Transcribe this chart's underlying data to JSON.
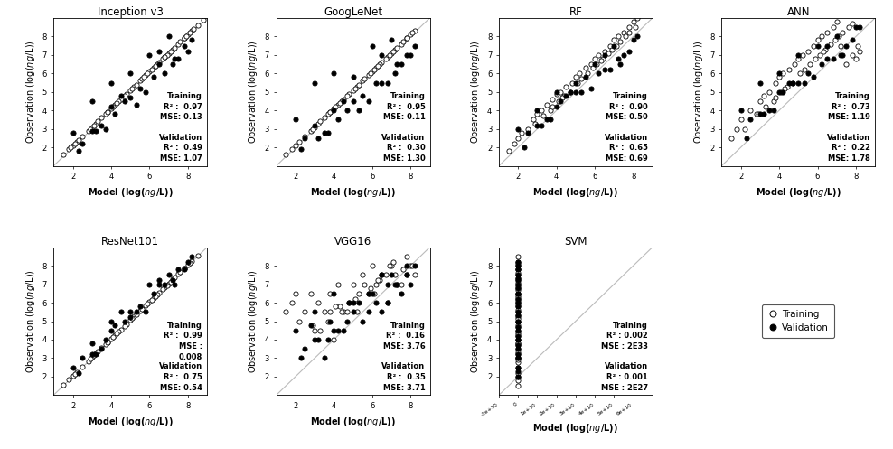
{
  "subplots": [
    {
      "title": "Inception v3",
      "train_r2": "0.97",
      "train_mse": "0.13",
      "val_r2": "0.49",
      "val_mse": "1.07",
      "xlim": [
        1,
        9
      ],
      "ylim": [
        1,
        9
      ],
      "xticks": [
        2,
        4,
        6,
        8
      ],
      "yticks": [
        2,
        3,
        4,
        5,
        6,
        7,
        8
      ],
      "svm": false,
      "train_x": [
        1.5,
        1.8,
        2.0,
        2.2,
        2.5,
        2.8,
        3.0,
        3.2,
        3.5,
        3.8,
        4.0,
        4.2,
        4.5,
        4.8,
        5.0,
        5.2,
        5.5,
        5.8,
        6.0,
        6.2,
        6.5,
        6.8,
        7.0,
        7.2,
        7.5,
        7.8,
        8.0,
        8.2,
        8.5,
        8.8,
        3.3,
        4.4,
        5.6,
        6.1,
        6.9,
        7.3,
        7.8,
        5.3,
        4.7,
        3.7,
        6.7,
        8.1,
        7.6,
        6.4,
        5.9,
        4.3,
        3.8,
        2.9,
        2.3,
        1.9,
        5.1,
        6.3,
        7.1,
        4.1,
        3.1,
        2.1,
        8.3,
        7.9,
        6.8,
        5.7
      ],
      "train_y": [
        1.6,
        1.9,
        2.1,
        2.3,
        2.6,
        2.9,
        3.1,
        3.3,
        3.6,
        3.9,
        4.1,
        4.3,
        4.6,
        4.9,
        5.1,
        5.3,
        5.6,
        5.9,
        6.1,
        6.3,
        6.6,
        6.9,
        7.1,
        7.3,
        7.6,
        7.9,
        8.1,
        8.3,
        8.6,
        8.9,
        3.4,
        4.5,
        5.7,
        6.2,
        7.0,
        7.4,
        7.9,
        5.4,
        4.8,
        3.8,
        6.8,
        8.2,
        7.7,
        6.5,
        6.0,
        4.4,
        3.9,
        3.0,
        2.4,
        2.0,
        5.2,
        6.4,
        7.2,
        4.2,
        3.2,
        2.2,
        8.4,
        8.0,
        6.9,
        5.8
      ],
      "val_x": [
        2.0,
        2.5,
        3.0,
        3.5,
        4.0,
        4.5,
        5.0,
        5.5,
        6.0,
        6.5,
        7.0,
        7.5,
        8.0,
        3.2,
        4.2,
        5.3,
        6.2,
        7.2,
        5.8,
        4.7,
        3.7,
        6.8,
        7.8,
        5.0,
        4.0,
        3.0,
        2.3,
        6.5,
        7.3,
        8.2
      ],
      "val_y": [
        2.8,
        2.2,
        4.5,
        3.2,
        5.5,
        4.8,
        6.0,
        5.2,
        7.0,
        6.5,
        8.0,
        6.8,
        7.2,
        2.9,
        3.8,
        4.3,
        5.8,
        6.5,
        5.0,
        4.5,
        3.0,
        6.0,
        7.5,
        4.7,
        4.2,
        2.9,
        1.8,
        7.2,
        6.8,
        7.8
      ]
    },
    {
      "title": "GoogLeNet",
      "train_r2": "0.95",
      "train_mse": "0.11",
      "val_r2": "0.30",
      "val_mse": "1.30",
      "xlim": [
        1,
        9
      ],
      "ylim": [
        1,
        9
      ],
      "xticks": [
        2,
        4,
        6,
        8
      ],
      "yticks": [
        2,
        3,
        4,
        5,
        6,
        7,
        8
      ],
      "svm": false,
      "train_x": [
        1.5,
        1.8,
        2.0,
        2.2,
        2.5,
        2.8,
        3.0,
        3.2,
        3.5,
        3.8,
        4.0,
        4.2,
        4.5,
        4.8,
        5.0,
        5.2,
        5.5,
        5.8,
        6.0,
        6.2,
        6.5,
        6.8,
        7.0,
        7.2,
        7.5,
        7.8,
        8.0,
        8.2,
        3.3,
        4.4,
        5.6,
        6.1,
        6.9,
        7.3,
        7.8,
        5.3,
        4.7,
        3.7,
        6.7,
        8.1,
        7.6,
        6.4,
        5.9,
        4.3,
        3.8,
        2.9,
        5.1,
        6.3,
        7.1,
        4.1
      ],
      "train_y": [
        1.6,
        1.9,
        2.1,
        2.3,
        2.6,
        2.9,
        3.1,
        3.3,
        3.6,
        3.9,
        4.1,
        4.3,
        4.6,
        4.9,
        5.1,
        5.3,
        5.6,
        5.9,
        6.1,
        6.3,
        6.6,
        6.9,
        7.1,
        7.3,
        7.6,
        7.9,
        8.1,
        8.3,
        3.4,
        4.5,
        5.7,
        6.2,
        7.0,
        7.4,
        7.9,
        5.4,
        4.8,
        3.8,
        6.8,
        8.2,
        7.7,
        6.5,
        6.0,
        4.4,
        3.9,
        3.0,
        5.2,
        6.4,
        7.2,
        4.2
      ],
      "val_x": [
        2.0,
        2.5,
        3.0,
        3.5,
        4.0,
        4.5,
        5.0,
        5.5,
        6.0,
        6.5,
        7.0,
        7.5,
        8.0,
        3.2,
        4.2,
        5.3,
        6.2,
        7.2,
        5.8,
        4.7,
        3.7,
        6.8,
        7.8,
        5.0,
        4.0,
        3.0,
        2.3,
        6.5,
        7.3,
        8.2
      ],
      "val_y": [
        3.5,
        2.5,
        5.5,
        2.8,
        6.0,
        4.5,
        5.8,
        4.8,
        7.5,
        5.5,
        7.8,
        6.5,
        7.0,
        2.5,
        3.5,
        4.0,
        5.5,
        6.0,
        4.5,
        4.0,
        2.8,
        5.5,
        7.0,
        4.5,
        4.0,
        3.2,
        1.9,
        7.0,
        6.5,
        7.5
      ]
    },
    {
      "title": "RF",
      "train_r2": "0.90",
      "train_mse": "0.50",
      "val_r2": "0.65",
      "val_mse": "0.69",
      "xlim": [
        1,
        9
      ],
      "ylim": [
        1,
        9
      ],
      "xticks": [
        2,
        4,
        6,
        8
      ],
      "yticks": [
        2,
        3,
        4,
        5,
        6,
        7,
        8
      ],
      "svm": false,
      "train_x": [
        1.5,
        1.8,
        2.0,
        2.2,
        2.5,
        2.8,
        3.0,
        3.2,
        3.5,
        3.8,
        4.0,
        4.2,
        4.5,
        4.8,
        5.0,
        5.2,
        5.5,
        5.8,
        6.0,
        6.2,
        6.5,
        6.8,
        7.0,
        7.2,
        7.5,
        7.8,
        8.0,
        8.2,
        3.3,
        4.4,
        5.6,
        6.1,
        6.9,
        7.3,
        7.8,
        5.3,
        4.7,
        3.7,
        6.7,
        8.1,
        7.6,
        6.4,
        5.9,
        4.3,
        3.8,
        2.9,
        5.1,
        6.3,
        7.1,
        4.1
      ],
      "train_y": [
        1.8,
        2.2,
        2.5,
        2.8,
        3.0,
        3.5,
        3.8,
        4.0,
        4.3,
        4.6,
        4.9,
        5.0,
        5.3,
        5.5,
        5.8,
        6.0,
        6.3,
        6.5,
        6.8,
        7.0,
        7.2,
        7.5,
        7.8,
        8.0,
        8.2,
        8.5,
        8.8,
        9.0,
        3.7,
        4.8,
        6.0,
        6.5,
        7.3,
        7.7,
        8.2,
        5.7,
        5.0,
        4.0,
        7.1,
        8.5,
        8.0,
        6.8,
        6.3,
        4.7,
        4.2,
        3.3,
        5.5,
        6.7,
        7.5,
        4.5
      ],
      "val_x": [
        2.0,
        2.5,
        3.0,
        3.5,
        4.0,
        4.5,
        5.0,
        5.5,
        6.0,
        6.5,
        7.0,
        7.5,
        8.0,
        3.2,
        4.2,
        5.3,
        6.2,
        7.2,
        5.8,
        4.7,
        3.7,
        6.8,
        7.8,
        5.0,
        4.0,
        3.0,
        2.3,
        6.5,
        7.3,
        8.2
      ],
      "val_y": [
        3.0,
        2.8,
        4.0,
        3.5,
        5.0,
        4.8,
        5.5,
        5.8,
        6.5,
        6.2,
        7.5,
        7.0,
        7.8,
        3.2,
        4.5,
        5.0,
        6.0,
        6.8,
        5.2,
        5.0,
        3.5,
        6.2,
        7.2,
        5.0,
        4.2,
        3.2,
        2.0,
        7.0,
        6.5,
        8.0
      ]
    },
    {
      "title": "ANN",
      "train_r2": "0.73",
      "train_mse": "1.19",
      "val_r2": "0.22",
      "val_mse": "1.78",
      "xlim": [
        1,
        9
      ],
      "ylim": [
        1,
        9
      ],
      "xticks": [
        2,
        4,
        6,
        8
      ],
      "yticks": [
        2,
        3,
        4,
        5,
        6,
        7,
        8
      ],
      "svm": false,
      "train_x": [
        1.5,
        1.8,
        2.0,
        2.2,
        2.5,
        2.8,
        3.0,
        3.2,
        3.5,
        3.8,
        4.0,
        4.2,
        4.5,
        4.8,
        5.0,
        5.2,
        5.5,
        5.8,
        6.0,
        6.2,
        6.5,
        6.8,
        7.0,
        7.2,
        7.5,
        7.8,
        8.0,
        8.2,
        3.3,
        4.4,
        5.6,
        6.1,
        6.9,
        7.3,
        7.8,
        5.3,
        4.7,
        3.7,
        6.7,
        8.1,
        7.6,
        6.4,
        5.9,
        4.3,
        3.8,
        2.9,
        5.1,
        6.3,
        7.1,
        4.1
      ],
      "train_y": [
        2.5,
        3.0,
        3.5,
        3.0,
        4.0,
        3.8,
        4.5,
        4.8,
        5.0,
        5.5,
        5.8,
        6.0,
        6.2,
        6.5,
        6.8,
        7.0,
        7.2,
        7.5,
        7.8,
        8.0,
        8.2,
        8.5,
        8.8,
        7.5,
        6.5,
        7.0,
        6.8,
        7.2,
        4.2,
        5.3,
        6.5,
        7.0,
        7.8,
        8.2,
        8.7,
        6.2,
        5.5,
        4.5,
        7.6,
        7.5,
        8.5,
        7.3,
        6.8,
        5.2,
        4.7,
        3.8,
        6.0,
        7.2,
        8.0,
        5.0
      ],
      "val_x": [
        2.0,
        2.5,
        3.0,
        3.5,
        4.0,
        4.5,
        5.0,
        5.5,
        6.0,
        6.5,
        7.0,
        7.5,
        8.0,
        3.2,
        4.2,
        5.3,
        6.2,
        7.2,
        5.8,
        4.7,
        3.7,
        6.8,
        7.8,
        5.0,
        4.0,
        3.0,
        2.3,
        6.5,
        7.3,
        8.2
      ],
      "val_y": [
        4.0,
        3.5,
        5.5,
        4.0,
        6.0,
        5.5,
        7.0,
        6.0,
        7.5,
        6.8,
        8.0,
        7.5,
        8.5,
        3.8,
        5.0,
        5.5,
        6.5,
        7.0,
        5.8,
        5.5,
        4.0,
        6.8,
        7.8,
        5.5,
        5.0,
        3.8,
        2.5,
        7.5,
        7.0,
        8.5
      ]
    },
    {
      "title": "ResNet101",
      "train_r2": "0.99",
      "train_mse": "0.008",
      "val_r2": "0.75",
      "val_mse": "0.54",
      "resnet_mse_multiline": true,
      "xlim": [
        1,
        9
      ],
      "ylim": [
        1,
        9
      ],
      "xticks": [
        2,
        4,
        6,
        8
      ],
      "yticks": [
        2,
        3,
        4,
        5,
        6,
        7,
        8
      ],
      "svm": false,
      "train_x": [
        1.5,
        1.8,
        2.0,
        2.2,
        2.5,
        2.8,
        3.0,
        3.2,
        3.5,
        3.8,
        4.0,
        4.2,
        4.5,
        4.8,
        5.0,
        5.2,
        5.5,
        5.8,
        6.0,
        6.2,
        6.5,
        6.8,
        7.0,
        7.2,
        7.5,
        7.8,
        8.0,
        8.2,
        8.5,
        3.3,
        4.4,
        5.6,
        6.1,
        6.9,
        7.3,
        7.8,
        5.3,
        4.7,
        3.7,
        6.7,
        8.1,
        7.6,
        6.4,
        5.9,
        4.3,
        3.8,
        2.9,
        5.1,
        6.3,
        7.1,
        4.1,
        3.1,
        2.1
      ],
      "train_y": [
        1.55,
        1.85,
        2.05,
        2.25,
        2.55,
        2.85,
        3.05,
        3.25,
        3.55,
        3.85,
        4.05,
        4.25,
        4.55,
        4.85,
        5.05,
        5.25,
        5.55,
        5.85,
        6.05,
        6.25,
        6.55,
        6.85,
        7.05,
        7.25,
        7.55,
        7.85,
        8.05,
        8.25,
        8.55,
        3.35,
        4.45,
        5.65,
        6.15,
        6.95,
        7.35,
        7.85,
        5.35,
        4.75,
        3.75,
        6.75,
        8.15,
        7.65,
        6.45,
        5.95,
        4.35,
        3.85,
        2.95,
        5.15,
        6.35,
        7.15,
        4.15,
        3.15,
        2.15
      ],
      "val_x": [
        2.0,
        2.5,
        3.0,
        3.5,
        4.0,
        4.5,
        5.0,
        5.5,
        6.0,
        6.5,
        7.0,
        7.5,
        8.0,
        3.2,
        4.2,
        5.3,
        6.2,
        7.2,
        5.8,
        4.7,
        3.7,
        6.8,
        7.8,
        5.0,
        4.0,
        3.0,
        2.3,
        6.5,
        7.3,
        8.2
      ],
      "val_y": [
        2.5,
        3.0,
        3.8,
        3.5,
        5.0,
        5.5,
        5.5,
        5.8,
        7.0,
        7.0,
        7.5,
        7.8,
        8.2,
        3.2,
        4.8,
        5.5,
        6.5,
        7.2,
        5.5,
        5.0,
        4.0,
        7.0,
        7.8,
        5.2,
        4.5,
        3.2,
        2.2,
        7.2,
        7.0,
        8.5
      ]
    },
    {
      "title": "VGG16",
      "train_r2": "0.16",
      "train_mse": "3.76",
      "val_r2": "0.35",
      "val_mse": "3.71",
      "xlim": [
        1,
        9
      ],
      "ylim": [
        1,
        9
      ],
      "xticks": [
        2,
        4,
        6,
        8
      ],
      "yticks": [
        2,
        3,
        4,
        5,
        6,
        7,
        8
      ],
      "svm": false,
      "train_x": [
        1.5,
        1.8,
        2.0,
        2.2,
        2.5,
        2.8,
        3.0,
        3.2,
        3.5,
        3.8,
        4.0,
        4.2,
        4.5,
        4.8,
        5.0,
        5.2,
        5.5,
        5.8,
        6.0,
        6.2,
        6.5,
        6.8,
        7.0,
        7.2,
        7.5,
        7.8,
        8.0,
        8.2,
        3.3,
        4.4,
        5.6,
        6.1,
        6.9,
        7.3,
        7.8,
        5.3,
        4.7,
        3.7,
        6.7,
        8.1,
        7.6,
        6.4,
        5.9,
        4.3,
        3.8,
        2.9,
        5.1,
        6.3,
        7.1,
        4.1
      ],
      "train_y": [
        5.5,
        6.0,
        6.5,
        5.0,
        5.5,
        6.5,
        4.5,
        6.0,
        5.5,
        6.5,
        4.0,
        7.0,
        5.5,
        6.0,
        7.0,
        5.5,
        7.5,
        6.5,
        8.0,
        7.0,
        7.5,
        6.0,
        8.0,
        7.5,
        7.0,
        7.5,
        8.0,
        7.5,
        4.5,
        5.5,
        7.0,
        6.5,
        8.0,
        7.0,
        8.5,
        6.5,
        5.5,
        5.0,
        7.5,
        8.0,
        7.8,
        7.2,
        6.8,
        5.8,
        5.5,
        4.8,
        6.2,
        7.2,
        8.2,
        5.8
      ],
      "val_x": [
        2.0,
        2.5,
        3.0,
        3.5,
        4.0,
        4.5,
        5.0,
        5.5,
        6.0,
        6.5,
        7.0,
        7.5,
        8.0,
        3.2,
        4.2,
        5.3,
        6.2,
        7.2,
        5.8,
        4.7,
        3.7,
        6.8,
        7.8,
        5.0,
        4.0,
        3.0,
        2.3,
        6.5,
        7.3,
        8.2,
        2.8,
        3.8,
        4.8,
        5.8,
        6.8,
        7.8
      ],
      "val_y": [
        4.5,
        3.5,
        5.5,
        3.0,
        6.5,
        4.5,
        6.0,
        5.0,
        6.5,
        5.5,
        7.5,
        6.5,
        7.0,
        4.0,
        4.5,
        6.0,
        6.0,
        7.0,
        5.5,
        5.0,
        4.0,
        6.0,
        7.5,
        5.5,
        4.5,
        4.0,
        3.0,
        7.5,
        7.0,
        8.0,
        4.8,
        5.0,
        6.0,
        6.5,
        7.0,
        8.0
      ]
    },
    {
      "title": "SVM",
      "train_r2": "0.002",
      "train_mse": "2E33",
      "val_r2": "0.001",
      "val_mse": "2E27",
      "xlim": [
        -10000000000.0,
        70000000000.0
      ],
      "ylim": [
        1,
        9
      ],
      "xticks": [
        -10000000000.0,
        0,
        10000000000.0,
        20000000000.0,
        30000000000.0,
        40000000000.0,
        50000000000.0,
        60000000000.0
      ],
      "xticklabels": [
        "-1e+10",
        "0",
        "1e+10",
        "2e+10",
        "3e+10",
        "4e+10",
        "5e+10",
        "6e+10"
      ],
      "yticks": [
        2,
        3,
        4,
        5,
        6,
        7,
        8
      ],
      "svm": true,
      "train_x": [
        0,
        0,
        0,
        0,
        0,
        0,
        0,
        0,
        0,
        0,
        0,
        0,
        0,
        0,
        0,
        0,
        0,
        0,
        0,
        0,
        0,
        0,
        0,
        0,
        0,
        0,
        0,
        0,
        0,
        0,
        0,
        0,
        0,
        0,
        0,
        0,
        0,
        0,
        0,
        0,
        0,
        0,
        0,
        0,
        0,
        0,
        0,
        0,
        0,
        0
      ],
      "train_y": [
        1.5,
        1.8,
        2.0,
        2.2,
        2.5,
        2.8,
        3.0,
        3.2,
        3.5,
        3.8,
        4.0,
        4.2,
        4.5,
        4.8,
        5.0,
        5.2,
        5.5,
        5.8,
        6.0,
        6.2,
        6.5,
        6.8,
        7.0,
        7.2,
        7.5,
        7.8,
        8.0,
        8.2,
        8.5,
        3.3,
        4.4,
        5.6,
        6.1,
        6.9,
        7.3,
        7.8,
        5.3,
        4.7,
        3.7,
        6.7,
        8.1,
        7.6,
        6.4,
        5.9,
        4.3,
        3.8,
        2.9,
        5.1,
        6.3,
        7.1
      ],
      "val_x": [
        0,
        0,
        0,
        0,
        0,
        0,
        0,
        0,
        0,
        0,
        0,
        0,
        0,
        0,
        0,
        0,
        0,
        0,
        0,
        0,
        0,
        0,
        0,
        0,
        0,
        0,
        0,
        0,
        0,
        0
      ],
      "val_y": [
        2.0,
        2.5,
        3.0,
        3.5,
        4.0,
        4.5,
        5.0,
        5.5,
        6.0,
        6.5,
        7.0,
        7.5,
        8.0,
        3.2,
        4.2,
        5.3,
        6.2,
        7.2,
        5.8,
        4.7,
        3.7,
        6.8,
        7.8,
        5.0,
        4.0,
        3.0,
        2.3,
        6.5,
        7.3,
        8.2
      ]
    }
  ],
  "figsize": [
    9.88,
    4.97
  ],
  "marker_size": 14,
  "train_color": "white",
  "train_edge": "black",
  "val_color": "black",
  "diag_color": "#bbbbbb",
  "annotation_fontsize": 6.0,
  "title_fontsize": 8.5,
  "axis_label_fontsize": 7.0,
  "tick_fontsize": 6.0
}
